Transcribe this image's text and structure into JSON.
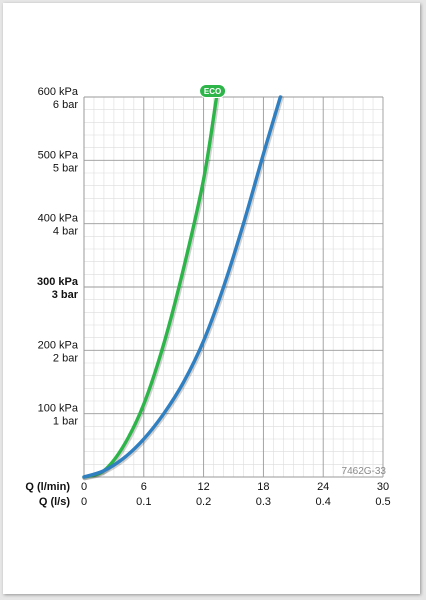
{
  "chart_data": {
    "type": "line",
    "x_axis_primary": {
      "label": "Q (l/min)",
      "ticks": [
        0,
        6,
        12,
        18,
        24,
        30
      ],
      "tick_labels": [
        "0",
        "6",
        "12",
        "18",
        "24",
        "30"
      ],
      "range": [
        0,
        30
      ]
    },
    "x_axis_secondary": {
      "label": "Q (l/s)",
      "tick_labels": [
        "0",
        "0.1",
        "0.2",
        "0.3",
        "0.4",
        "0.5"
      ]
    },
    "y_axis": {
      "range": [
        0,
        600
      ],
      "unit": "kPa",
      "ticks": [
        100,
        200,
        300,
        400,
        500,
        600
      ],
      "labels_kpa": [
        "100 kPa",
        "200 kPa",
        "300 kPa",
        "400 kPa",
        "500 kPa",
        "600 kPa"
      ],
      "labels_bar": [
        "1 bar",
        "2 bar",
        "3 bar",
        "4 bar",
        "5 bar",
        "6 bar"
      ],
      "bold_tick": 300
    },
    "grid": true,
    "series": [
      {
        "name": "ECO",
        "color": "#2db54a",
        "x": [
          0,
          2,
          4,
          6,
          8,
          10,
          12,
          13.3
        ],
        "y": [
          0,
          10,
          50,
          115,
          210,
          330,
          470,
          600
        ]
      },
      {
        "color": "#2f7fc1",
        "x": [
          0,
          2,
          4,
          6,
          8,
          10,
          12,
          14,
          16,
          18,
          19.7
        ],
        "y": [
          0,
          10,
          30,
          60,
          100,
          150,
          215,
          300,
          400,
          510,
          600
        ]
      }
    ],
    "code_label": "7462G-33"
  }
}
